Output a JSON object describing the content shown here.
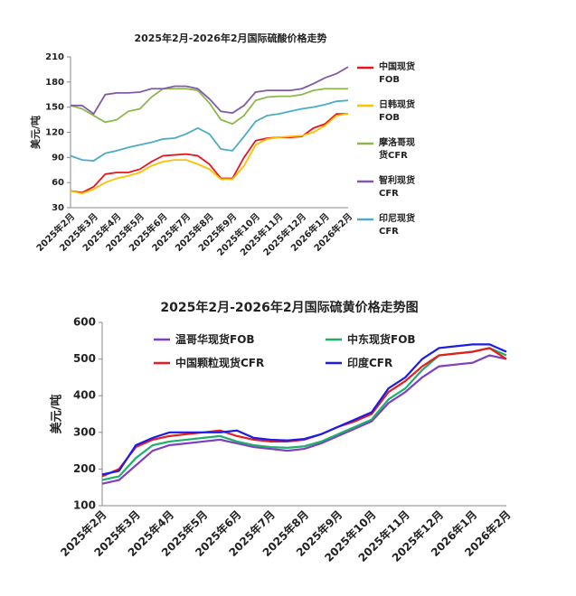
{
  "chart_data": [
    {
      "type": "line",
      "title": "2025年2月-2026年2月国际硫酸价格走势",
      "y_label": "美元/吨",
      "legend": "right",
      "categories": [
        "2025年2月",
        null,
        "2025年3月",
        null,
        "2025年4月",
        null,
        "2025年5月",
        null,
        "2025年6月",
        null,
        "2025年7月",
        null,
        "2025年8月",
        null,
        "2025年9月",
        null,
        "2025年10月",
        null,
        "2025年11月",
        null,
        "2025年12月",
        null,
        "2026年1月",
        null,
        "2026年2月"
      ],
      "ylim": [
        30,
        210
      ],
      "yticks": [
        30,
        60,
        90,
        120,
        150,
        180,
        210
      ],
      "series": [
        {
          "name": "中国现货\nFOB",
          "color": "#e8141c",
          "values": [
            50,
            48,
            55,
            70,
            72,
            72,
            76,
            85,
            92,
            93,
            94,
            92,
            82,
            65,
            65,
            90,
            110,
            113,
            114,
            114,
            115,
            125,
            130,
            142,
            142
          ]
        },
        {
          "name": "日韩现货\nFOB",
          "color": "#ffc000",
          "values": [
            50,
            47,
            52,
            60,
            65,
            68,
            72,
            80,
            85,
            87,
            87,
            82,
            76,
            64,
            64,
            80,
            105,
            112,
            114,
            115,
            116,
            120,
            128,
            140,
            142
          ]
        },
        {
          "name": "摩洛哥现\n货CFR",
          "color": "#8db849",
          "values": [
            152,
            148,
            140,
            132,
            135,
            145,
            148,
            162,
            172,
            172,
            172,
            170,
            155,
            135,
            130,
            140,
            158,
            162,
            163,
            163,
            165,
            170,
            172,
            172,
            172
          ]
        },
        {
          "name": "智利现货\nCFR",
          "color": "#7f5aa6",
          "values": [
            152,
            152,
            142,
            165,
            167,
            167,
            168,
            172,
            172,
            175,
            175,
            172,
            160,
            145,
            143,
            152,
            168,
            170,
            170,
            170,
            172,
            178,
            185,
            190,
            198
          ]
        },
        {
          "name": "印尼现货\nCFR",
          "color": "#4bacc6",
          "values": [
            92,
            87,
            86,
            95,
            98,
            102,
            105,
            108,
            112,
            113,
            118,
            125,
            118,
            100,
            98,
            115,
            133,
            140,
            142,
            145,
            148,
            150,
            153,
            157,
            158
          ]
        }
      ]
    },
    {
      "type": "line",
      "title": "2025年2月-2026年2月国际硫黄价格走势图",
      "y_label": "美元/吨",
      "legend": "upper left",
      "categories": [
        "2025年2月",
        null,
        "2025年3月",
        null,
        "2025年4月",
        null,
        "2025年5月",
        null,
        "2025年6月",
        null,
        "2025年7月",
        null,
        "2025年8月",
        null,
        "2025年9月",
        null,
        "2025年10月",
        null,
        "2025年11月",
        null,
        "2025年12月",
        null,
        "2026年1月",
        null,
        "2026年2月"
      ],
      "ylim": [
        100,
        600
      ],
      "yticks": [
        100,
        200,
        300,
        400,
        500,
        600
      ],
      "series": [
        {
          "name": "温哥华现货FOB",
          "color": "#7f3fbf",
          "values": [
            160,
            170,
            210,
            250,
            265,
            270,
            275,
            280,
            270,
            260,
            255,
            250,
            255,
            270,
            290,
            310,
            330,
            380,
            410,
            450,
            480,
            485,
            490,
            510,
            500
          ]
        },
        {
          "name": "中东现货FOB",
          "color": "#1fae6e",
          "values": [
            170,
            180,
            230,
            265,
            275,
            280,
            285,
            290,
            275,
            265,
            260,
            258,
            262,
            275,
            295,
            315,
            335,
            390,
            420,
            470,
            510,
            515,
            520,
            530,
            510
          ]
        },
        {
          "name": "中国颗粒现货CFR",
          "color": "#e81c1c",
          "values": [
            180,
            200,
            260,
            280,
            290,
            295,
            300,
            305,
            290,
            280,
            275,
            275,
            280,
            295,
            315,
            330,
            350,
            410,
            440,
            480,
            510,
            515,
            520,
            530,
            500
          ]
        },
        {
          "name": "印度CFR",
          "color": "#1c1ce8",
          "values": [
            185,
            195,
            265,
            285,
            300,
            300,
            300,
            300,
            305,
            285,
            280,
            278,
            282,
            295,
            315,
            335,
            355,
            420,
            450,
            500,
            530,
            535,
            540,
            540,
            520
          ]
        }
      ]
    }
  ]
}
